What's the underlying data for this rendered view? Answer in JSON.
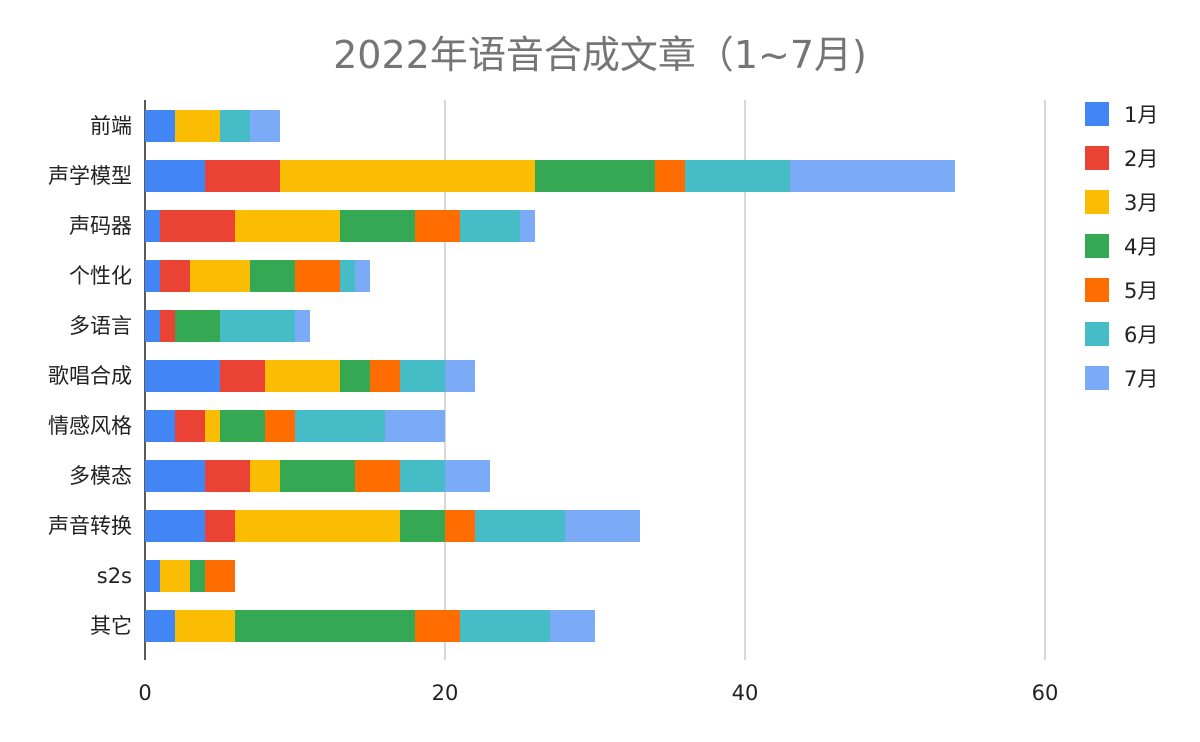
{
  "chart_data": {
    "type": "bar",
    "orientation": "horizontal",
    "stacked": true,
    "title": "2022年语音合成文章（1~7月)",
    "xlabel": "",
    "ylabel": "",
    "xlim": [
      0,
      60
    ],
    "xticks": [
      0,
      20,
      40,
      60
    ],
    "grid": "vertical",
    "legend_position": "right",
    "categories": [
      "前端",
      "声学模型",
      "声码器",
      "个性化",
      "多语言",
      "歌唱合成",
      "情感风格",
      "多模态",
      "声音转换",
      "s2s",
      "其它"
    ],
    "series": [
      {
        "name": "1月",
        "color": "#4285F4",
        "values": [
          2,
          4,
          1,
          1,
          1,
          5,
          2,
          4,
          4,
          1,
          2
        ]
      },
      {
        "name": "2月",
        "color": "#EA4335",
        "values": [
          0,
          5,
          5,
          2,
          1,
          3,
          2,
          3,
          2,
          0,
          0
        ]
      },
      {
        "name": "3月",
        "color": "#FBBC04",
        "values": [
          3,
          17,
          7,
          4,
          0,
          5,
          1,
          2,
          11,
          2,
          4
        ]
      },
      {
        "name": "4月",
        "color": "#34A853",
        "values": [
          0,
          8,
          5,
          3,
          3,
          2,
          3,
          5,
          3,
          1,
          12
        ]
      },
      {
        "name": "5月",
        "color": "#FF6D01",
        "values": [
          0,
          2,
          3,
          3,
          0,
          2,
          2,
          3,
          2,
          2,
          3
        ]
      },
      {
        "name": "6月",
        "color": "#46BDC6",
        "values": [
          2,
          7,
          4,
          1,
          5,
          3,
          6,
          3,
          6,
          0,
          6
        ]
      },
      {
        "name": "7月",
        "color": "#7BAAF7",
        "values": [
          2,
          11,
          1,
          1,
          1,
          2,
          4,
          3,
          5,
          0,
          3
        ]
      }
    ]
  }
}
